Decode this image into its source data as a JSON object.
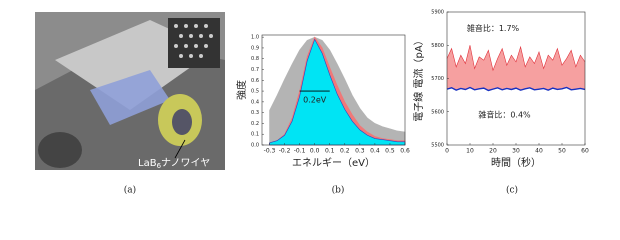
{
  "panels": [
    "(a)",
    "(b)",
    "(c)"
  ],
  "image_label": {
    "main": "LaB",
    "sub": "6",
    "rest": "ナノワイヤ"
  },
  "chart_data": [
    {
      "type": "area",
      "xlabel": "エネルギー（eV）",
      "ylabel": "強度",
      "annotation": "0.2eV",
      "x": [
        -0.3,
        -0.25,
        -0.2,
        -0.15,
        -0.1,
        -0.05,
        0,
        0.05,
        0.1,
        0.15,
        0.2,
        0.25,
        0.3,
        0.35,
        0.4,
        0.45,
        0.5,
        0.55,
        0.6
      ],
      "series": [
        {
          "color": "#b4b4b4",
          "values": [
            0.32,
            0.46,
            0.61,
            0.75,
            0.88,
            0.97,
            1.0,
            0.97,
            0.88,
            0.75,
            0.61,
            0.46,
            0.34,
            0.25,
            0.2,
            0.17,
            0.15,
            0.13,
            0.12
          ]
        },
        {
          "color": "#f07878",
          "values": [
            0.02,
            0.04,
            0.1,
            0.25,
            0.5,
            0.82,
            1.0,
            0.9,
            0.72,
            0.55,
            0.4,
            0.28,
            0.18,
            0.12,
            0.08,
            0.06,
            0.05,
            0.04,
            0.04
          ]
        },
        {
          "color": "#00e4f4",
          "values": [
            0.02,
            0.04,
            0.09,
            0.22,
            0.45,
            0.78,
            0.98,
            0.85,
            0.65,
            0.47,
            0.33,
            0.22,
            0.14,
            0.09,
            0.06,
            0.05,
            0.04,
            0.03,
            0.03
          ]
        }
      ],
      "xlim": [
        -0.35,
        0.6
      ],
      "xticks": [
        -0.3,
        -0.2,
        -0.1,
        {
          "value": 0,
          "label": "0.0"
        },
        0.1,
        0.2,
        0.3,
        0.4,
        0.5,
        0.6
      ],
      "ylim": [
        0,
        1.02
      ],
      "yticks": [
        {
          "value": 0,
          "label": "0.0"
        },
        0.1,
        0.2,
        0.3,
        0.4,
        0.5,
        0.6,
        0.7,
        0.8,
        0.9,
        {
          "value": 1,
          "label": "1.0"
        }
      ]
    },
    {
      "type": "line",
      "xlabel": "時間（秒）",
      "ylabel": "電子線 電流（pA）",
      "annotations": [
        "雑音比：1.7%",
        "雑音比：0.4%"
      ],
      "x": [
        0,
        2,
        4,
        6,
        8,
        10,
        12,
        14,
        16,
        18,
        20,
        22,
        24,
        26,
        28,
        30,
        32,
        34,
        36,
        38,
        40,
        42,
        44,
        46,
        48,
        50,
        52,
        54,
        56,
        58,
        60
      ],
      "series": [
        {
          "color": "#e0303a",
          "values": [
            5760,
            5790,
            5735,
            5770,
            5745,
            5800,
            5730,
            5765,
            5755,
            5785,
            5725,
            5760,
            5790,
            5740,
            5770,
            5750,
            5795,
            5735,
            5765,
            5745,
            5780,
            5730,
            5770,
            5755,
            5790,
            5740,
            5760,
            5785,
            5735,
            5770,
            5750
          ]
        },
        {
          "color": "#1830c0",
          "values": [
            5668,
            5672,
            5665,
            5670,
            5667,
            5673,
            5666,
            5669,
            5671,
            5664,
            5668,
            5672,
            5666,
            5670,
            5667,
            5671,
            5665,
            5669,
            5672,
            5666,
            5668,
            5670,
            5665,
            5671,
            5667,
            5669,
            5673,
            5666,
            5668,
            5670,
            5667
          ]
        }
      ],
      "xlim": [
        0,
        60
      ],
      "xticks": [
        0,
        10,
        20,
        30,
        40,
        50,
        60
      ],
      "ylim": [
        5500,
        5900
      ],
      "yticks": [
        5500,
        5600,
        5700,
        5800,
        5900
      ]
    }
  ]
}
